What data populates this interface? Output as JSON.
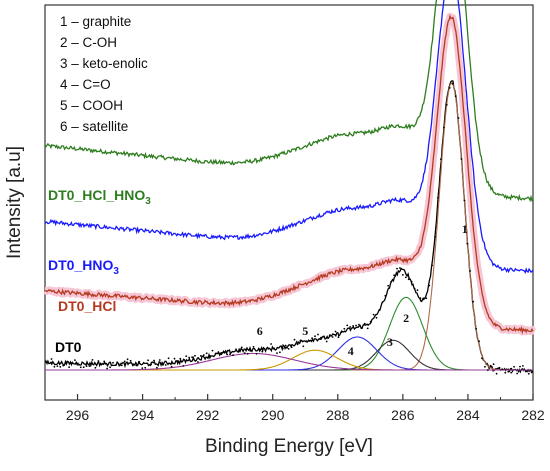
{
  "chart_data": {
    "type": "line",
    "xlabel": "Binding Energy [eV]",
    "ylabel": "Intensity [a.u]",
    "xlim": [
      297,
      282
    ],
    "x_reversed": true,
    "x_ticks": [
      296,
      294,
      292,
      290,
      288,
      286,
      284,
      282
    ],
    "y_ticks": "none",
    "grid": false,
    "legend_placement": "top-left",
    "legend": [
      {
        "number": "1",
        "name": "graphite",
        "text": "1 – graphite"
      },
      {
        "number": "2",
        "name": "C-OH",
        "text": "2 – C-OH"
      },
      {
        "number": "3",
        "name": "keto-enolic",
        "text": "3 – keto-enolic"
      },
      {
        "number": "4",
        "name": "C=O",
        "text": "4 – C=O"
      },
      {
        "number": "5",
        "name": "COOH",
        "text": "5 – COOH"
      },
      {
        "number": "6",
        "name": "satellite",
        "text": "6 – satellite"
      }
    ],
    "series": [
      {
        "label": "DT0_HCl_HNO3",
        "label_main": "DT0_HCl_HNO",
        "label_sub": "3",
        "color": "#2e7d1f",
        "offset": 0.52,
        "peak": 0.95,
        "bg": [
          0.16,
          0.01
        ]
      },
      {
        "label": "DT0_HNO3",
        "label_main": "DT0_HNO",
        "label_sub": "3",
        "color": "#1a1aff",
        "offset": 0.3,
        "peak": 0.94,
        "bg": [
          0.15,
          0.01
        ]
      },
      {
        "label": "DT0_HCl",
        "label_main": "DT0_HCl",
        "label_sub": "",
        "color": "#b53a1f",
        "offset": 0.12,
        "peak": 0.98,
        "bg": [
          0.12,
          0.01
        ]
      },
      {
        "label": "DT0",
        "label_main": "DT0",
        "label_sub": "",
        "color": "#000000",
        "offset": 0.0,
        "peak": 0.96,
        "bg": [
          0.05,
          0.0
        ]
      }
    ],
    "fit_components": [
      {
        "id": "1",
        "name": "graphite",
        "center": 284.5,
        "height": 0.87,
        "fwhm": 0.9,
        "color": "#b06a4a"
      },
      {
        "id": "2",
        "name": "C-OH",
        "center": 285.9,
        "height": 0.22,
        "fwhm": 1.2,
        "color": "#2e8b2e"
      },
      {
        "id": "3",
        "name": "keto-enolic",
        "center": 286.3,
        "height": 0.09,
        "fwhm": 1.2,
        "color": "#333333"
      },
      {
        "id": "4",
        "name": "C=O",
        "center": 287.4,
        "height": 0.1,
        "fwhm": 1.4,
        "color": "#3030e0"
      },
      {
        "id": "5",
        "name": "COOH",
        "center": 288.7,
        "height": 0.06,
        "fwhm": 1.6,
        "color": "#cc9900"
      },
      {
        "id": "6",
        "name": "satellite",
        "center": 290.6,
        "height": 0.05,
        "fwhm": 3.0,
        "color": "#9a3a9a"
      }
    ]
  }
}
